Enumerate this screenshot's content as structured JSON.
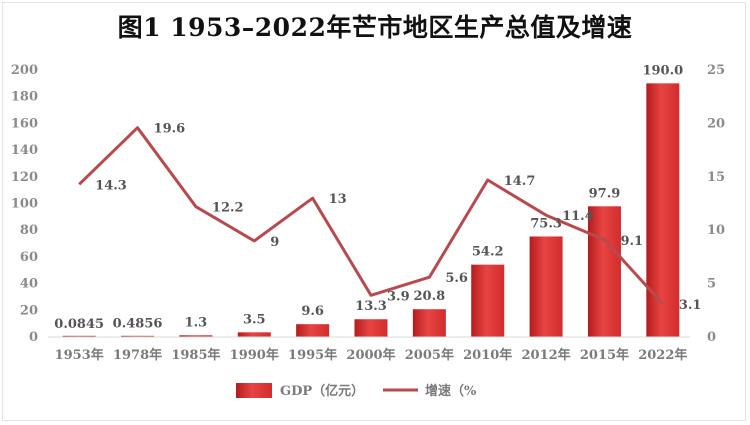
{
  "chart_data": {
    "type": "bar",
    "title": "图1 1953–2022年芒市地区生产总值及增速",
    "categories": [
      "1953年",
      "1978年",
      "1985年",
      "1990年",
      "1995年",
      "2000年",
      "2005年",
      "2010年",
      "2012年",
      "2015年",
      "2022年"
    ],
    "series": [
      {
        "name": "GDP（亿元）",
        "type": "bar",
        "axis": "left",
        "values": [
          0.0845,
          0.4856,
          1.3,
          3.5,
          9.6,
          13.3,
          20.8,
          54.2,
          75.3,
          97.9,
          190.0
        ],
        "labels": [
          "0.0845",
          "0.4856",
          "1.3",
          "3.5",
          "9.6",
          "13.3",
          "20.8",
          "54.2",
          "75.3",
          "97.9",
          "190.0"
        ]
      },
      {
        "name": "增速（%",
        "type": "line",
        "axis": "right",
        "values": [
          14.3,
          19.6,
          12.2,
          9,
          13,
          3.9,
          5.6,
          14.7,
          11.4,
          9.1,
          3.1
        ],
        "labels": [
          "14.3",
          "19.6",
          "12.2",
          "9",
          "13",
          "3.9",
          "5.6",
          "14.7",
          "11.4",
          "9.1",
          "3.1"
        ]
      }
    ],
    "y_left": {
      "min": 0,
      "max": 200,
      "ticks": [
        "0",
        "20",
        "40",
        "60",
        "80",
        "100",
        "120",
        "140",
        "160",
        "180",
        "200"
      ]
    },
    "y_right": {
      "min": 0,
      "max": 25,
      "ticks": [
        "0",
        "5",
        "10",
        "15",
        "20",
        "25"
      ]
    },
    "grid": false,
    "legend_position": "bottom",
    "colors": {
      "bar": "#e23b3b",
      "bar_dark": "#b01e1e",
      "line": "#b84a4e"
    }
  }
}
